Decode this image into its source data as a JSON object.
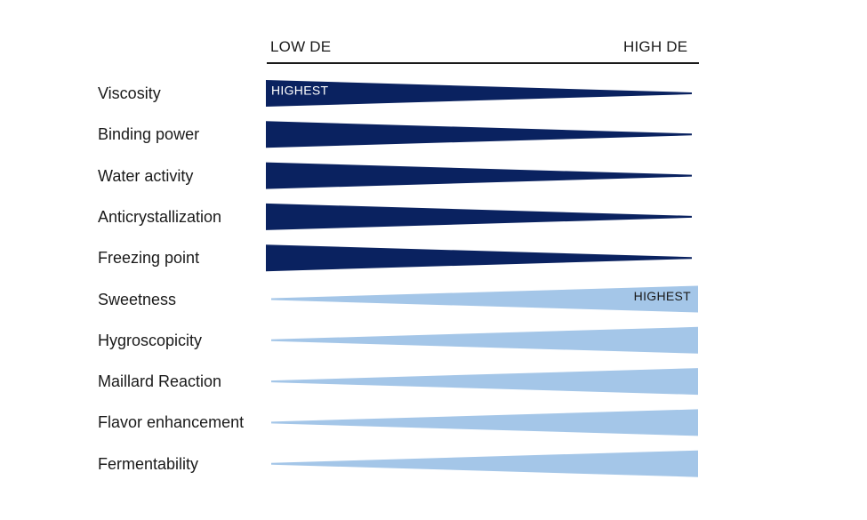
{
  "header": {
    "low_label": "LOW DE",
    "high_label": "HIGH DE"
  },
  "colors": {
    "decreasing": "#0a2260",
    "increasing": "#a4c6e8",
    "axis": "#1a1a1a"
  },
  "rows": [
    {
      "label": "Viscosity",
      "trend": "decreasing",
      "tag": "HIGHEST"
    },
    {
      "label": "Binding power",
      "trend": "decreasing",
      "tag": ""
    },
    {
      "label": "Water activity",
      "trend": "decreasing",
      "tag": ""
    },
    {
      "label": "Anticrystallization",
      "trend": "decreasing",
      "tag": ""
    },
    {
      "label": "Freezing point",
      "trend": "decreasing",
      "tag": ""
    },
    {
      "label": "Sweetness",
      "trend": "increasing",
      "tag": "HIGHEST"
    },
    {
      "label": "Hygroscopicity",
      "trend": "increasing",
      "tag": ""
    },
    {
      "label": "Maillard Reaction",
      "trend": "increasing",
      "tag": ""
    },
    {
      "label": "Flavor enhancement",
      "trend": "increasing",
      "tag": ""
    },
    {
      "label": "Fermentability",
      "trend": "increasing",
      "tag": ""
    }
  ]
}
